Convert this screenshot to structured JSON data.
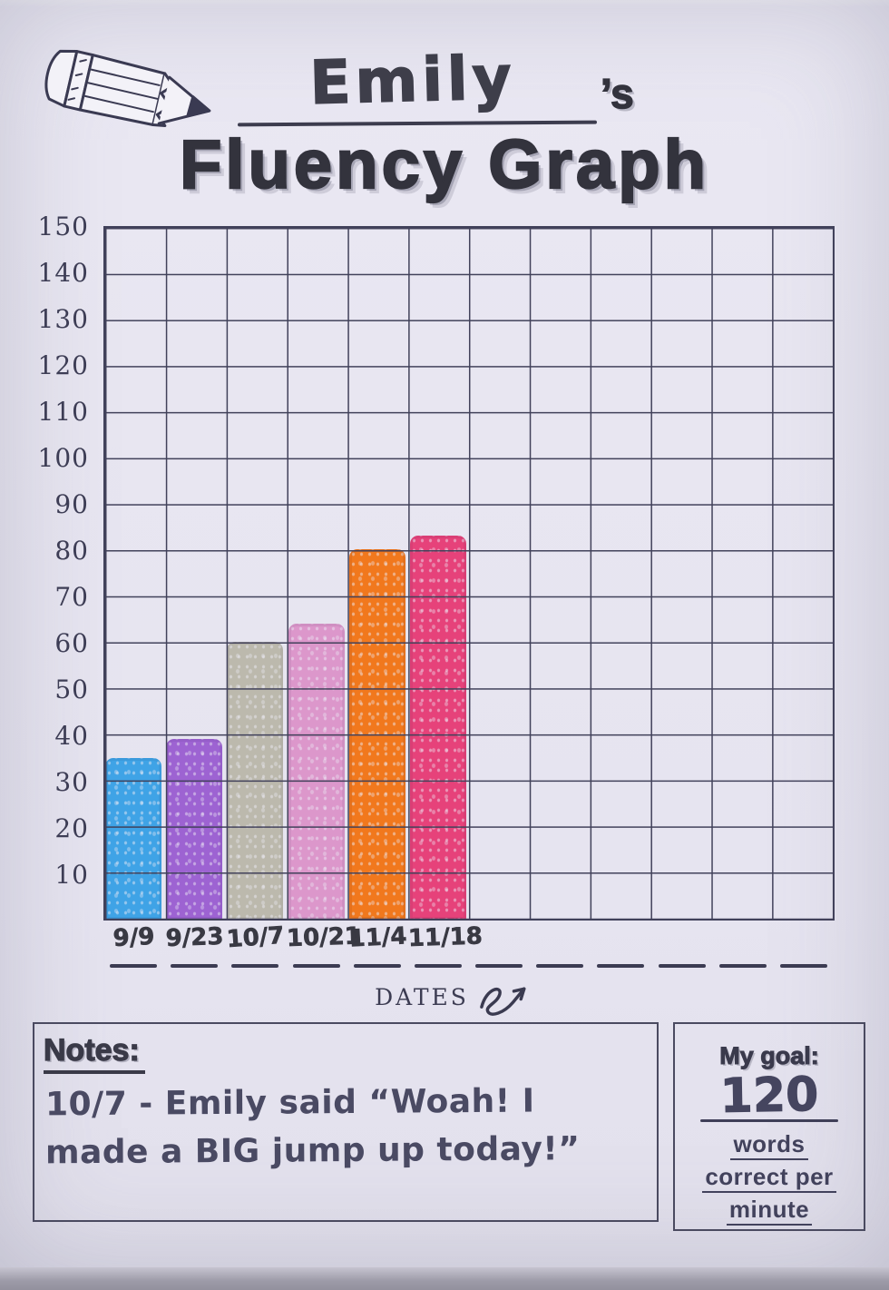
{
  "header": {
    "name": "Emily",
    "apostrophe_s": "’s",
    "title": "Fluency Graph"
  },
  "chart_data": {
    "type": "bar",
    "title": "Emily's Fluency Graph",
    "categories": [
      "9/9",
      "9/23",
      "10/7",
      "10/21",
      "11/4",
      "11/18"
    ],
    "values": [
      35,
      39,
      60,
      64,
      80,
      83
    ],
    "bar_colors": [
      "#3fa3e6",
      "#9d63d2",
      "#bcb9ad",
      "#dc97cb",
      "#f1781d",
      "#e6427a"
    ],
    "xlabel": "DATES",
    "ylabel": "words correct per minute",
    "ylim": [
      0,
      150
    ],
    "y_ticks": [
      150,
      140,
      130,
      120,
      110,
      100,
      90,
      80,
      70,
      60,
      50,
      40,
      30,
      20,
      10
    ],
    "layout": {
      "columns": 12,
      "rows": 15,
      "grid": true,
      "empty_category_slots": 6,
      "gridline_color": "#41415a",
      "paper_color": "#e8e6f1"
    }
  },
  "notes": {
    "heading": "Notes:",
    "lines": [
      "10/7 - Emily said “Woah! I",
      "made a BIG jump up today!”"
    ]
  },
  "goal": {
    "heading": "My goal:",
    "value": "120",
    "units": [
      "words",
      "correct per",
      "minute"
    ]
  },
  "icons": {
    "pencil": "pencil-icon",
    "arrow": "arrow-doodle-icon"
  }
}
